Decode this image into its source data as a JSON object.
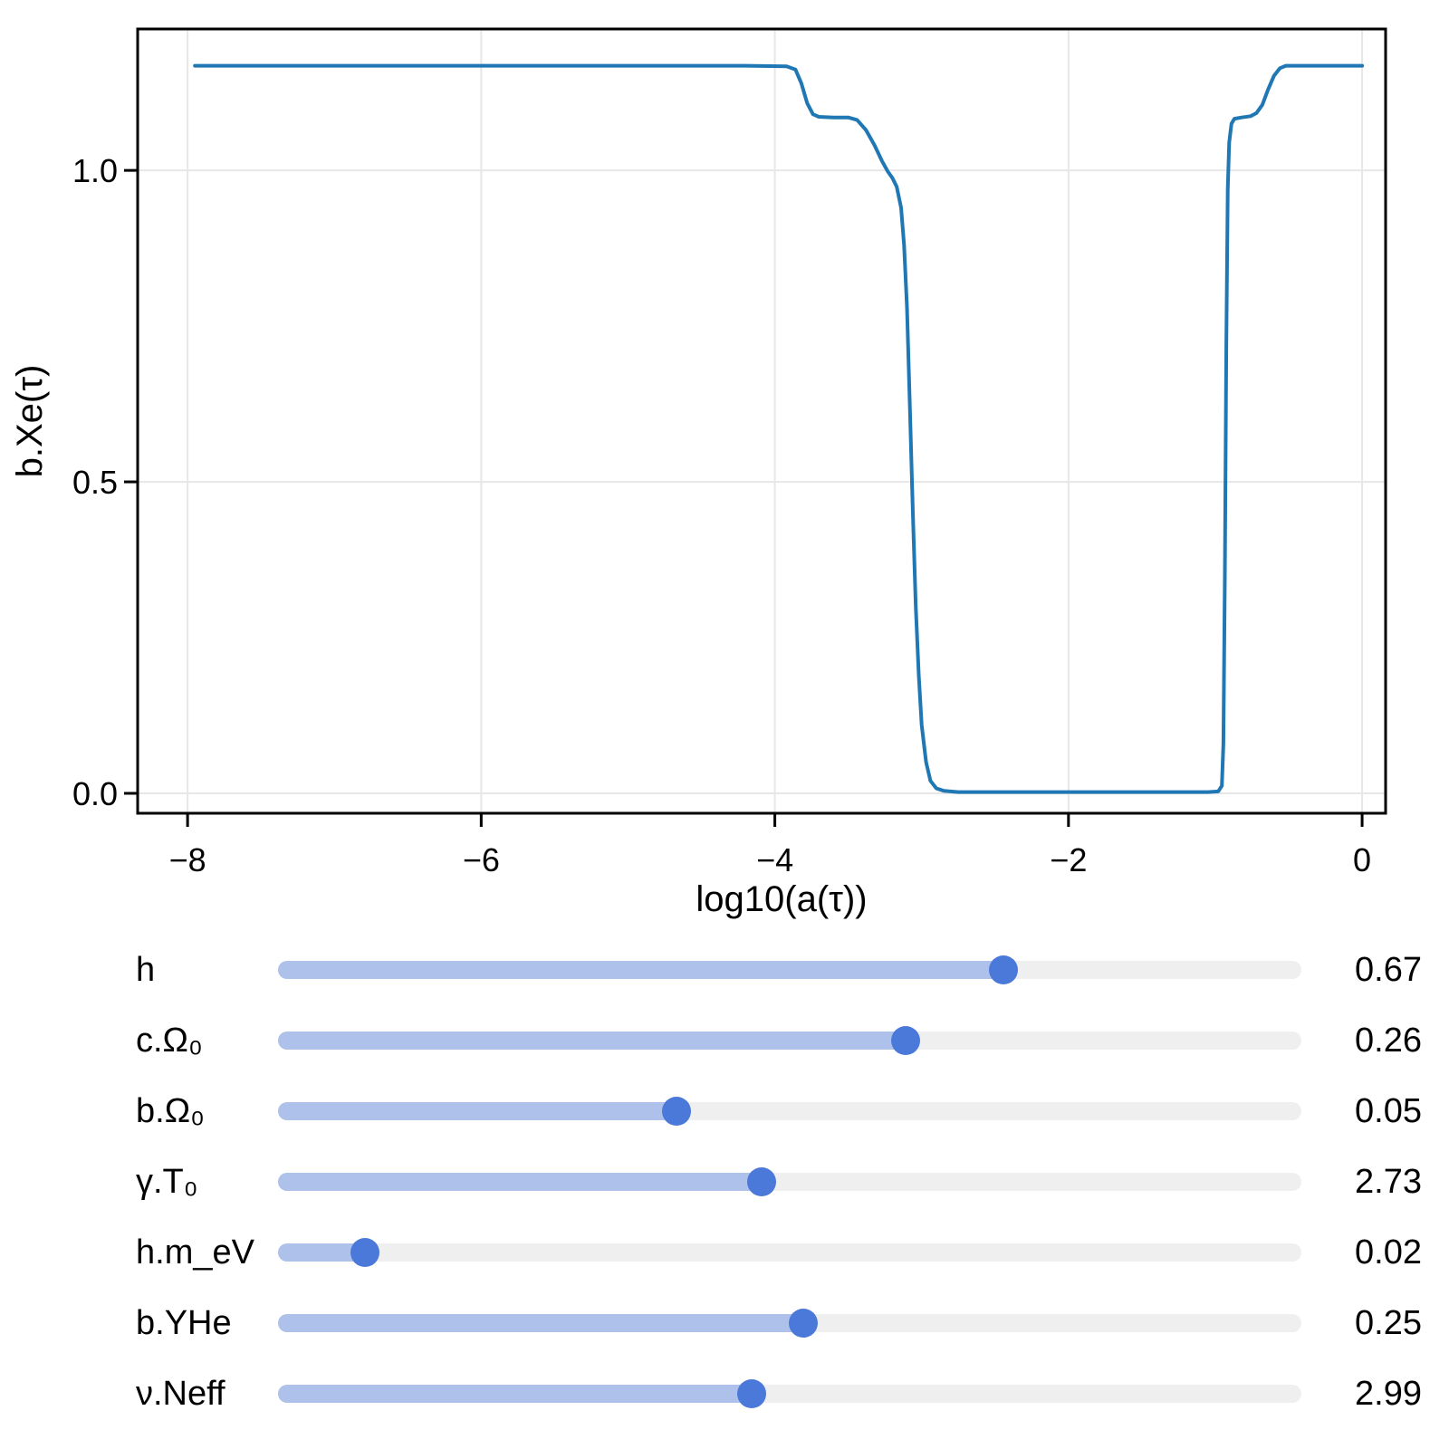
{
  "colors": {
    "line": "#1f77b4",
    "grid": "#e7e7e7",
    "spine": "#000000",
    "slider_track": "#efefef",
    "slider_fill": "#aec1ea",
    "slider_knob": "#4b79d9"
  },
  "chart_data": {
    "type": "line",
    "title": "",
    "xlabel": "log10(a(τ))",
    "ylabel": "b.Xe(τ)",
    "xlim": [
      -8.34,
      0.16
    ],
    "ylim": [
      -0.032,
      1.227
    ],
    "xticks": [
      -8,
      -6,
      -4,
      -2,
      0
    ],
    "xtick_labels": [
      "−8",
      "−6",
      "−4",
      "−2",
      "0"
    ],
    "yticks": [
      0,
      0.5,
      1
    ],
    "ytick_labels": [
      "0.0",
      "0.5",
      "1.0"
    ],
    "grid": true,
    "legend_position": "none",
    "series": [
      {
        "name": "b.Xe(τ)",
        "color": "#1f77b4",
        "points": [
          [
            -7.95,
            1.168
          ],
          [
            -7.0,
            1.168
          ],
          [
            -6.0,
            1.168
          ],
          [
            -5.0,
            1.168
          ],
          [
            -4.2,
            1.168
          ],
          [
            -3.92,
            1.167
          ],
          [
            -3.86,
            1.162
          ],
          [
            -3.82,
            1.14
          ],
          [
            -3.78,
            1.108
          ],
          [
            -3.74,
            1.09
          ],
          [
            -3.7,
            1.086
          ],
          [
            -3.6,
            1.085
          ],
          [
            -3.5,
            1.085
          ],
          [
            -3.44,
            1.081
          ],
          [
            -3.38,
            1.065
          ],
          [
            -3.32,
            1.04
          ],
          [
            -3.27,
            1.015
          ],
          [
            -3.23,
            0.998
          ],
          [
            -3.2,
            0.988
          ],
          [
            -3.17,
            0.974
          ],
          [
            -3.14,
            0.94
          ],
          [
            -3.12,
            0.88
          ],
          [
            -3.1,
            0.78
          ],
          [
            -3.08,
            0.62
          ],
          [
            -3.06,
            0.45
          ],
          [
            -3.04,
            0.3
          ],
          [
            -3.02,
            0.19
          ],
          [
            -3.0,
            0.11
          ],
          [
            -2.97,
            0.05
          ],
          [
            -2.94,
            0.02
          ],
          [
            -2.9,
            0.008
          ],
          [
            -2.85,
            0.004
          ],
          [
            -2.75,
            0.002
          ],
          [
            -2.5,
            0.002
          ],
          [
            -2.0,
            0.002
          ],
          [
            -1.5,
            0.002
          ],
          [
            -1.05,
            0.002
          ],
          [
            -0.98,
            0.003
          ],
          [
            -0.955,
            0.012
          ],
          [
            -0.945,
            0.08
          ],
          [
            -0.935,
            0.35
          ],
          [
            -0.925,
            0.72
          ],
          [
            -0.915,
            0.97
          ],
          [
            -0.905,
            1.045
          ],
          [
            -0.89,
            1.075
          ],
          [
            -0.87,
            1.083
          ],
          [
            -0.82,
            1.085
          ],
          [
            -0.76,
            1.087
          ],
          [
            -0.72,
            1.092
          ],
          [
            -0.68,
            1.105
          ],
          [
            -0.64,
            1.13
          ],
          [
            -0.6,
            1.152
          ],
          [
            -0.56,
            1.164
          ],
          [
            -0.52,
            1.168
          ],
          [
            -0.3,
            1.168
          ],
          [
            0.0,
            1.168
          ]
        ]
      }
    ]
  },
  "sliders": [
    {
      "label": "h",
      "value": "0.67",
      "fraction": 0.709
    },
    {
      "label": "c.Ω₀",
      "value": "0.26",
      "fraction": 0.613
    },
    {
      "label": "b.Ω₀",
      "value": "0.05",
      "fraction": 0.389
    },
    {
      "label": "γ.T₀",
      "value": "2.73",
      "fraction": 0.473
    },
    {
      "label": "h.m_eV",
      "value": "0.02",
      "fraction": 0.085
    },
    {
      "label": "b.YHe",
      "value": "0.25",
      "fraction": 0.513
    },
    {
      "label": "ν.Neff",
      "value": "2.99",
      "fraction": 0.463
    }
  ]
}
